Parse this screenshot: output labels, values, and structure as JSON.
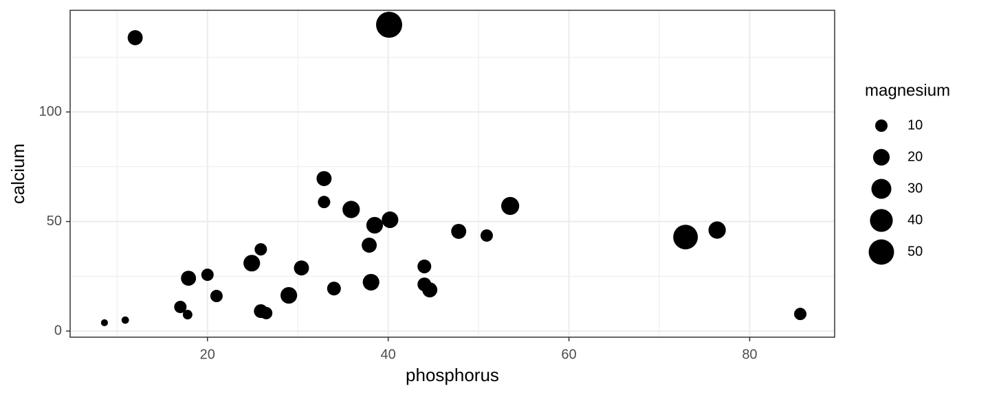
{
  "chart_data": {
    "type": "scatter",
    "x_label": "phosphorus",
    "y_label": "calcium",
    "color": "#000000",
    "x": [
      8.6,
      10.9,
      12.0,
      17.0,
      17.8,
      17.9,
      20.0,
      21.0,
      24.9,
      25.9,
      25.9,
      26.5,
      29.0,
      30.4,
      32.9,
      32.9,
      34.0,
      35.9,
      37.9,
      38.1,
      38.5,
      40.1,
      40.2,
      44.0,
      44.0,
      44.6,
      47.8,
      50.9,
      53.5,
      72.9,
      76.4,
      85.6
    ],
    "values": [
      3.8,
      5.0,
      133.9,
      11.0,
      7.5,
      24.1,
      25.7,
      16.0,
      31.0,
      37.3,
      9.1,
      8.2,
      16.3,
      28.8,
      69.6,
      58.9,
      19.4,
      55.5,
      39.2,
      22.3,
      48.3,
      139.8,
      50.8,
      29.5,
      21.3,
      18.8,
      45.5,
      43.6,
      57.1,
      42.9,
      46.1,
      7.8
    ],
    "sizes": [
      1.5,
      2,
      16,
      10,
      5,
      16,
      10,
      10,
      20,
      10,
      13,
      10,
      20,
      16,
      16,
      10,
      13,
      22,
      16,
      20,
      20,
      53,
      20,
      13,
      13,
      16,
      16,
      10,
      24,
      47,
      22,
      10
    ],
    "xlim": [
      4.8,
      89.4
    ],
    "ylim": [
      -2.8,
      146.4
    ],
    "xticks": [
      20,
      40,
      60,
      80
    ],
    "yticks": [
      0,
      50,
      100
    ],
    "x_minor_ticks": [
      10,
      30,
      50,
      70
    ],
    "y_minor_ticks": [
      25,
      75,
      125
    ],
    "grid": true,
    "size_legend": {
      "title": "magnesium",
      "values": [
        10,
        20,
        30,
        40,
        50
      ]
    }
  }
}
